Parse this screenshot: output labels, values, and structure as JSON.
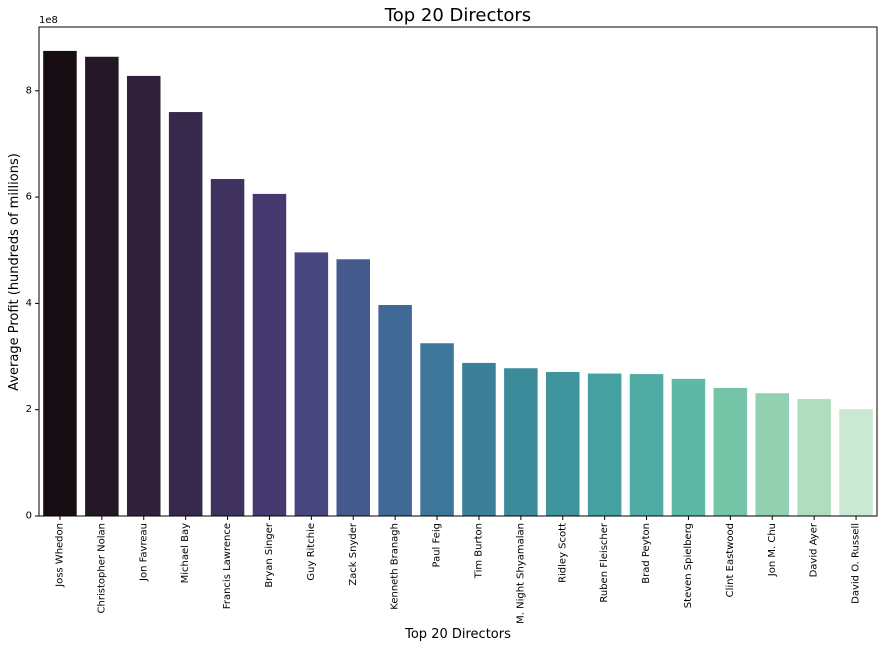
{
  "chart_data": {
    "type": "bar",
    "title": "Top 20 Directors",
    "xlabel": "Top 20 Directors",
    "ylabel": "Average Profit (hundreds of millions)",
    "y_offset_label": "1e8",
    "ylim": [
      0,
      920000000
    ],
    "yticks": [
      0,
      200000000,
      400000000,
      600000000,
      800000000
    ],
    "ytick_labels": [
      "0",
      "2",
      "4",
      "6",
      "8"
    ],
    "grid": false,
    "legend": "none",
    "categories": [
      "Joss Whedon",
      "Christopher Nolan",
      "Jon Favreau",
      "Michael Bay",
      "Francis Lawrence",
      "Bryan Singer",
      "Guy Ritchie",
      "Zack Snyder",
      "Kenneth Branagh",
      "Paul Feig",
      "Tim Burton",
      "M. Night Shyamalan",
      "Ridley Scott",
      "Ruben Fleischer",
      "Brad Peyton",
      "Steven Spielberg",
      "Clint Eastwood",
      "Jon M. Chu",
      "David Ayer",
      "David O. Russell"
    ],
    "values": [
      875000000,
      864000000,
      828000000,
      760000000,
      634000000,
      606000000,
      496000000,
      483000000,
      397000000,
      325000000,
      288000000,
      278000000,
      271000000,
      268000000,
      267000000,
      258000000,
      241000000,
      231000000,
      220000000,
      201000000
    ],
    "colors": [
      "#170e14",
      "#251826",
      "#2f2139",
      "#37294b",
      "#40325f",
      "#45396f",
      "#48467f",
      "#455a8c",
      "#416995",
      "#3c7698",
      "#3b8098",
      "#3c8b9a",
      "#3f949e",
      "#45a0a1",
      "#50aba4",
      "#5eb8a6",
      "#76c4a8",
      "#93d0b1",
      "#b0dcbf",
      "#cbe8d3"
    ]
  }
}
